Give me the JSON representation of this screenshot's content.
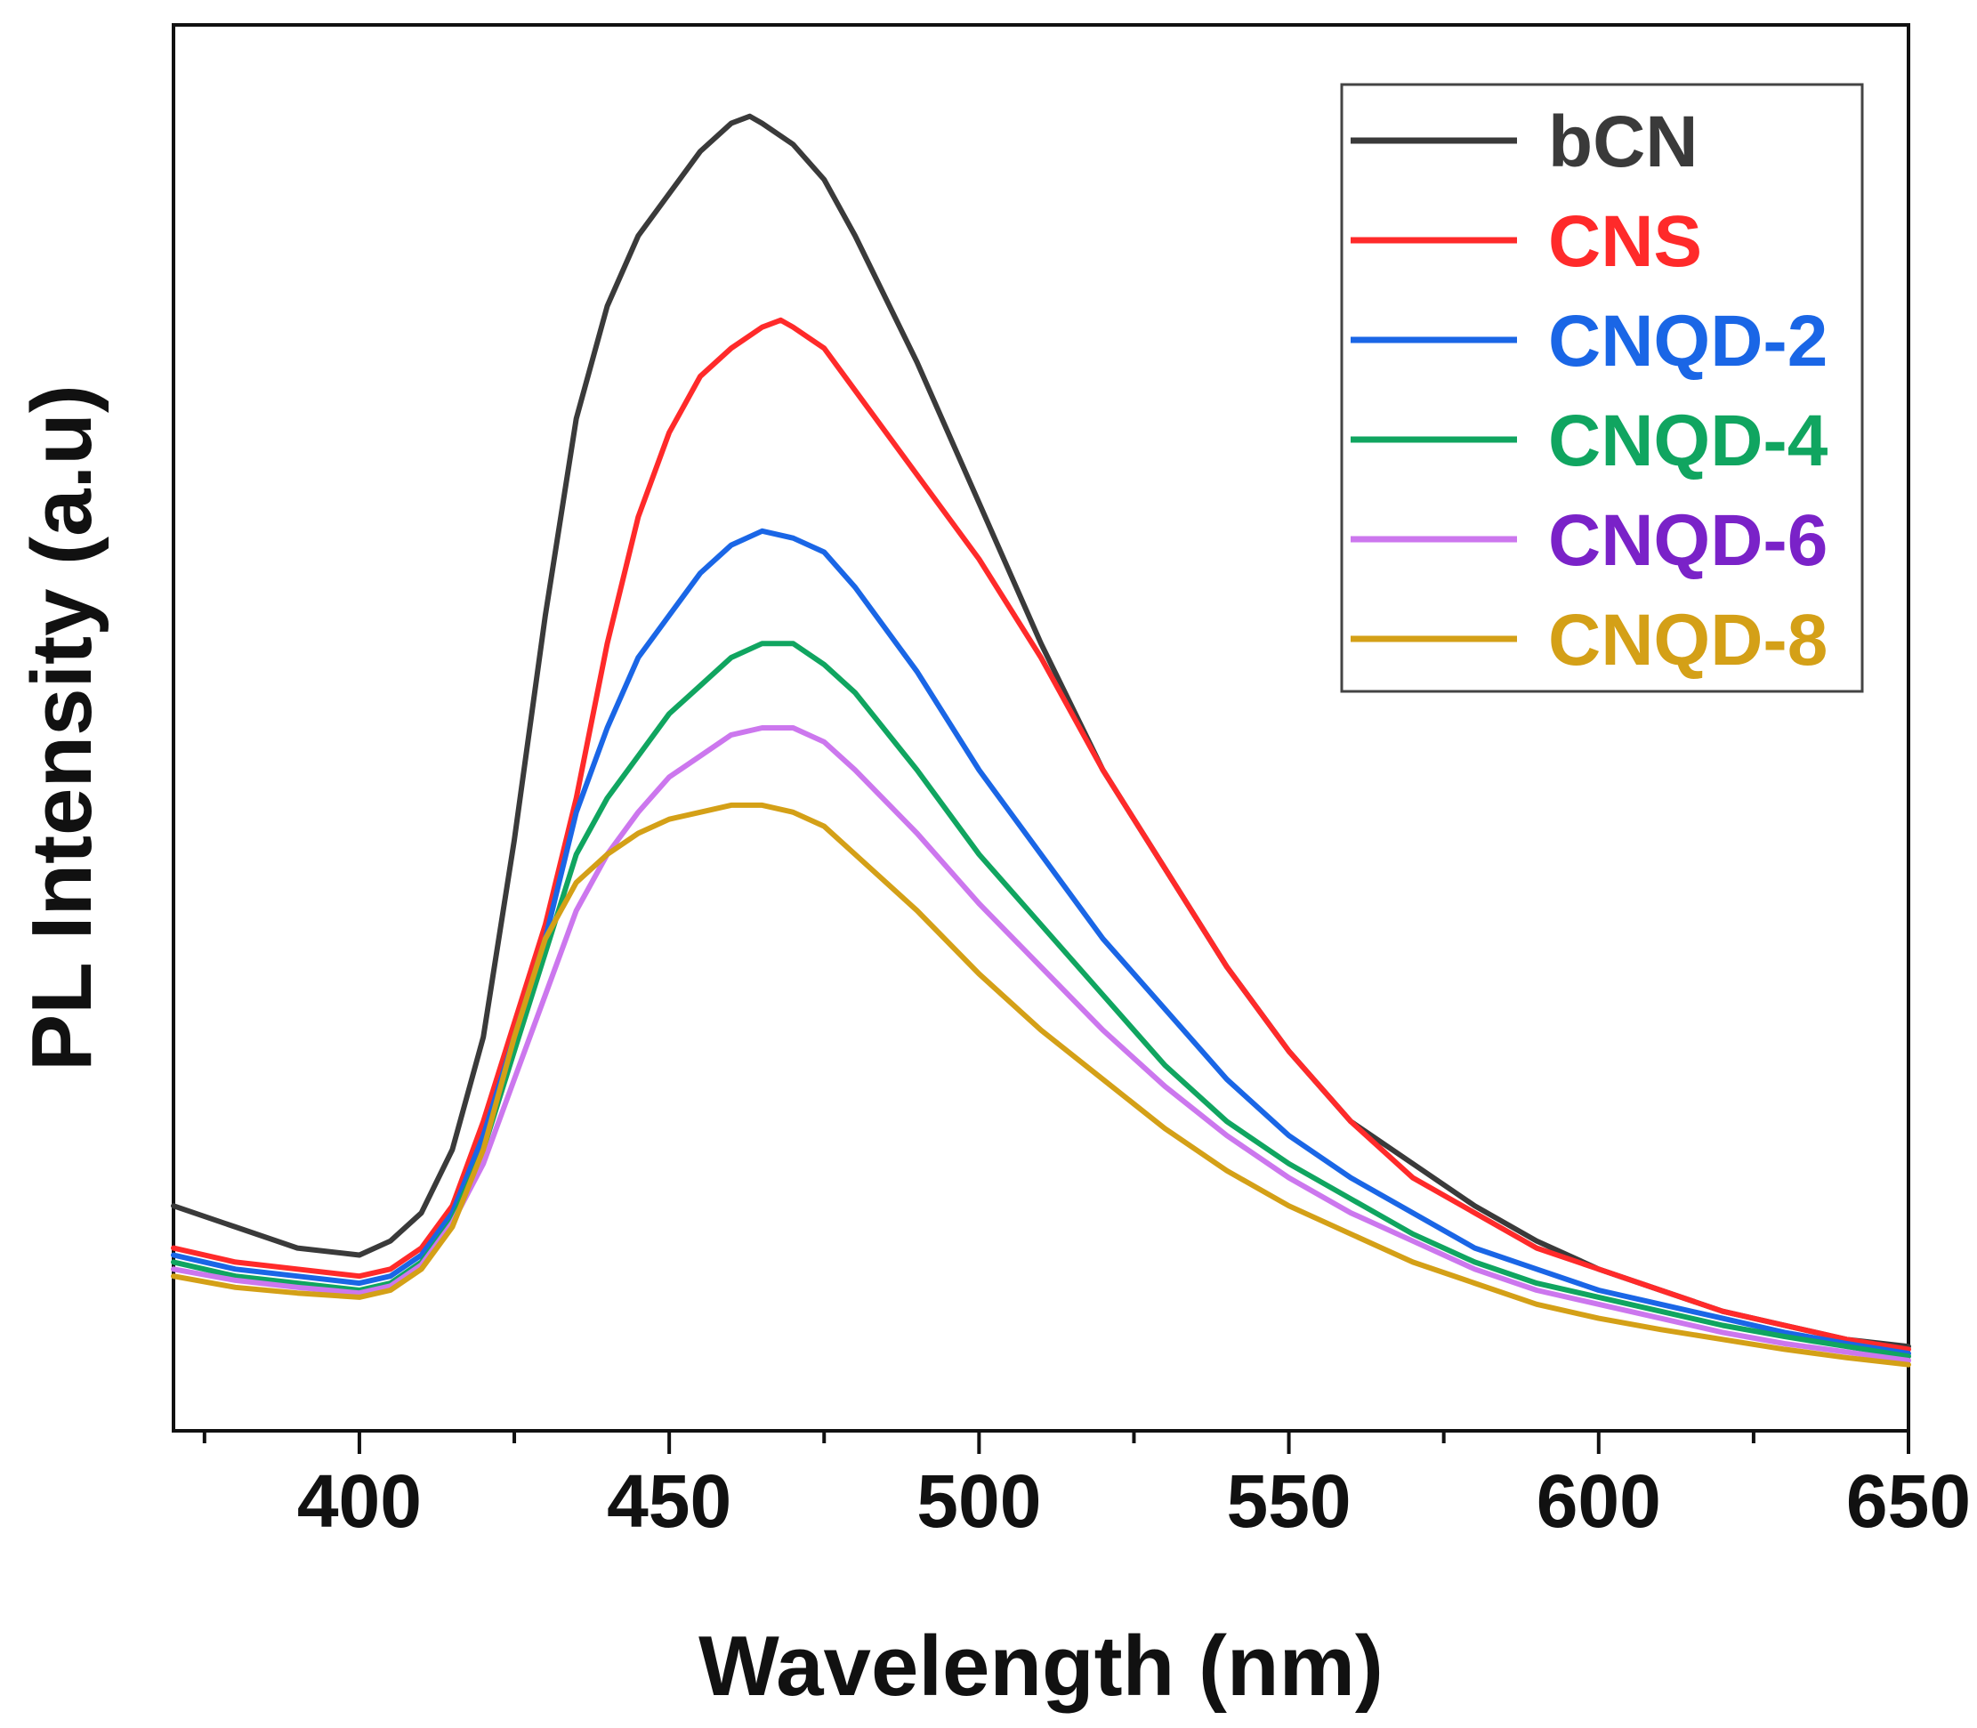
{
  "chart_data": {
    "type": "line",
    "title": "",
    "xlabel": "Wavelength (nm)",
    "ylabel": "PL Intensity (a.u)",
    "xlim": [
      370,
      650
    ],
    "ylim": [
      0,
      1.0
    ],
    "x_ticks": [
      400,
      450,
      500,
      550,
      600,
      650
    ],
    "x_tick_labels": [
      "400",
      "450",
      "500",
      "550",
      "600",
      "650"
    ],
    "y_ticks_shown": false,
    "legend_position": "top-right",
    "series": [
      {
        "name": "bCN",
        "color": "#3a3a3a",
        "x": [
          370,
          380,
          390,
          400,
          405,
          410,
          415,
          420,
          425,
          430,
          435,
          440,
          445,
          450,
          455,
          460,
          463,
          465,
          470,
          475,
          480,
          490,
          500,
          510,
          520,
          530,
          540,
          550,
          560,
          570,
          580,
          590,
          600,
          610,
          620,
          630,
          640,
          650
        ],
        "y": [
          0.16,
          0.145,
          0.13,
          0.125,
          0.135,
          0.155,
          0.2,
          0.28,
          0.42,
          0.58,
          0.72,
          0.8,
          0.85,
          0.88,
          0.91,
          0.93,
          0.935,
          0.93,
          0.915,
          0.89,
          0.85,
          0.76,
          0.66,
          0.56,
          0.47,
          0.4,
          0.33,
          0.27,
          0.22,
          0.19,
          0.16,
          0.135,
          0.115,
          0.1,
          0.085,
          0.075,
          0.065,
          0.06
        ]
      },
      {
        "name": "CNS",
        "color": "#ff2a2a",
        "x": [
          370,
          380,
          390,
          400,
          405,
          410,
          415,
          420,
          425,
          430,
          435,
          440,
          445,
          450,
          455,
          460,
          465,
          468,
          470,
          475,
          480,
          490,
          500,
          510,
          520,
          530,
          540,
          550,
          560,
          570,
          580,
          590,
          600,
          610,
          620,
          630,
          640,
          650
        ],
        "y": [
          0.13,
          0.12,
          0.115,
          0.11,
          0.115,
          0.13,
          0.16,
          0.22,
          0.29,
          0.36,
          0.45,
          0.56,
          0.65,
          0.71,
          0.75,
          0.77,
          0.785,
          0.79,
          0.785,
          0.77,
          0.74,
          0.68,
          0.62,
          0.55,
          0.47,
          0.4,
          0.33,
          0.27,
          0.22,
          0.18,
          0.155,
          0.13,
          0.115,
          0.1,
          0.085,
          0.075,
          0.065,
          0.058
        ]
      },
      {
        "name": "CNQD-2",
        "color": "#1a66e6",
        "x": [
          370,
          380,
          390,
          400,
          405,
          410,
          415,
          420,
          425,
          430,
          435,
          440,
          445,
          450,
          455,
          460,
          465,
          470,
          475,
          480,
          490,
          500,
          510,
          520,
          530,
          540,
          550,
          560,
          570,
          580,
          590,
          600,
          610,
          620,
          630,
          640,
          650
        ],
        "y": [
          0.125,
          0.115,
          0.11,
          0.105,
          0.11,
          0.125,
          0.155,
          0.21,
          0.28,
          0.35,
          0.44,
          0.5,
          0.55,
          0.58,
          0.61,
          0.63,
          0.64,
          0.635,
          0.625,
          0.6,
          0.54,
          0.47,
          0.41,
          0.35,
          0.3,
          0.25,
          0.21,
          0.18,
          0.155,
          0.13,
          0.115,
          0.1,
          0.09,
          0.08,
          0.07,
          0.062,
          0.055
        ]
      },
      {
        "name": "CNQD-4",
        "color": "#10a560",
        "x": [
          370,
          380,
          390,
          400,
          405,
          410,
          415,
          420,
          425,
          430,
          435,
          440,
          445,
          450,
          455,
          460,
          465,
          470,
          475,
          480,
          490,
          500,
          510,
          520,
          530,
          540,
          550,
          560,
          570,
          580,
          590,
          600,
          610,
          620,
          630,
          640,
          650
        ],
        "y": [
          0.12,
          0.11,
          0.105,
          0.1,
          0.105,
          0.12,
          0.15,
          0.2,
          0.27,
          0.34,
          0.41,
          0.45,
          0.48,
          0.51,
          0.53,
          0.55,
          0.56,
          0.56,
          0.545,
          0.525,
          0.47,
          0.41,
          0.36,
          0.31,
          0.26,
          0.22,
          0.19,
          0.165,
          0.14,
          0.12,
          0.105,
          0.095,
          0.085,
          0.075,
          0.067,
          0.06,
          0.053
        ]
      },
      {
        "name": "CNQD-6",
        "color": "#cc77ee",
        "x": [
          370,
          380,
          390,
          400,
          405,
          410,
          415,
          420,
          425,
          430,
          435,
          440,
          445,
          450,
          455,
          460,
          465,
          470,
          475,
          480,
          490,
          500,
          510,
          520,
          530,
          540,
          550,
          560,
          570,
          580,
          590,
          600,
          610,
          620,
          630,
          640,
          650
        ],
        "y": [
          0.115,
          0.107,
          0.102,
          0.098,
          0.103,
          0.118,
          0.148,
          0.19,
          0.25,
          0.31,
          0.37,
          0.41,
          0.44,
          0.465,
          0.48,
          0.495,
          0.5,
          0.5,
          0.49,
          0.47,
          0.425,
          0.375,
          0.33,
          0.285,
          0.245,
          0.21,
          0.18,
          0.155,
          0.135,
          0.115,
          0.1,
          0.09,
          0.08,
          0.07,
          0.062,
          0.056,
          0.05
        ]
      },
      {
        "name": "CNQD-8",
        "color": "#d4a017",
        "x": [
          370,
          380,
          390,
          400,
          405,
          410,
          415,
          420,
          425,
          430,
          435,
          440,
          445,
          450,
          455,
          460,
          465,
          470,
          475,
          480,
          490,
          500,
          510,
          520,
          530,
          540,
          550,
          560,
          570,
          580,
          590,
          600,
          610,
          620,
          630,
          640,
          650
        ],
        "y": [
          0.11,
          0.102,
          0.098,
          0.095,
          0.1,
          0.115,
          0.145,
          0.2,
          0.28,
          0.35,
          0.39,
          0.41,
          0.425,
          0.435,
          0.44,
          0.445,
          0.445,
          0.44,
          0.43,
          0.41,
          0.37,
          0.325,
          0.285,
          0.25,
          0.215,
          0.185,
          0.16,
          0.14,
          0.12,
          0.105,
          0.09,
          0.08,
          0.072,
          0.065,
          0.058,
          0.052,
          0.047
        ]
      }
    ]
  }
}
